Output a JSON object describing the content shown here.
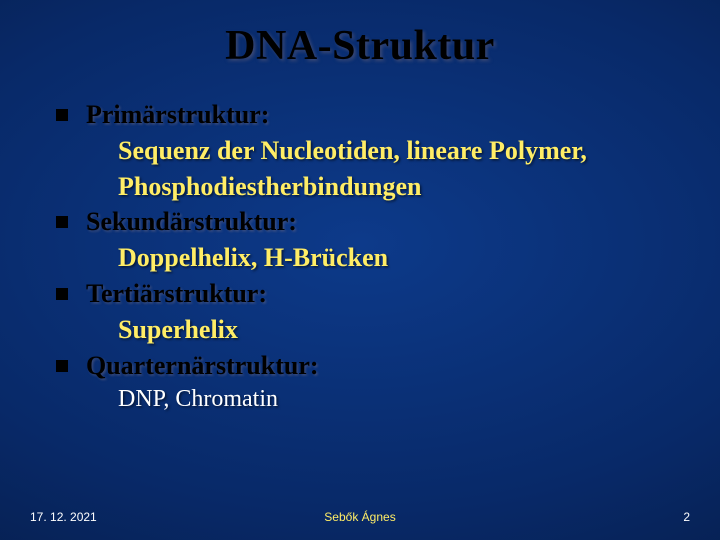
{
  "title": "DNA-Struktur",
  "items": [
    {
      "head": "Primärstruktur:",
      "sub": [
        "Sequenz der Nucleotiden, lineare Polymer,",
        "Phosphodiestherbindungen"
      ]
    },
    {
      "head": "Sekundärstruktur:",
      "sub": [
        "Doppelhelix, H-Brücken"
      ]
    },
    {
      "head": "Tertiärstruktur:",
      "sub": [
        "Superhelix"
      ]
    },
    {
      "head": "Quarternärstruktur:",
      "sub": []
    }
  ],
  "extra": "DNP, Chromatin",
  "footer": {
    "date": "17. 12. 2021",
    "author": "Sebők Ágnes",
    "page": "2"
  },
  "style": {
    "title_fontsize": 42,
    "body_fontsize": 26,
    "title_color": "#000000",
    "head_color": "#000000",
    "sub_color": "#ffed66",
    "extra_color": "#ffffff",
    "bg_center": "#0d3a8a",
    "bg_edge": "#020e28",
    "bullet_size": 12
  }
}
